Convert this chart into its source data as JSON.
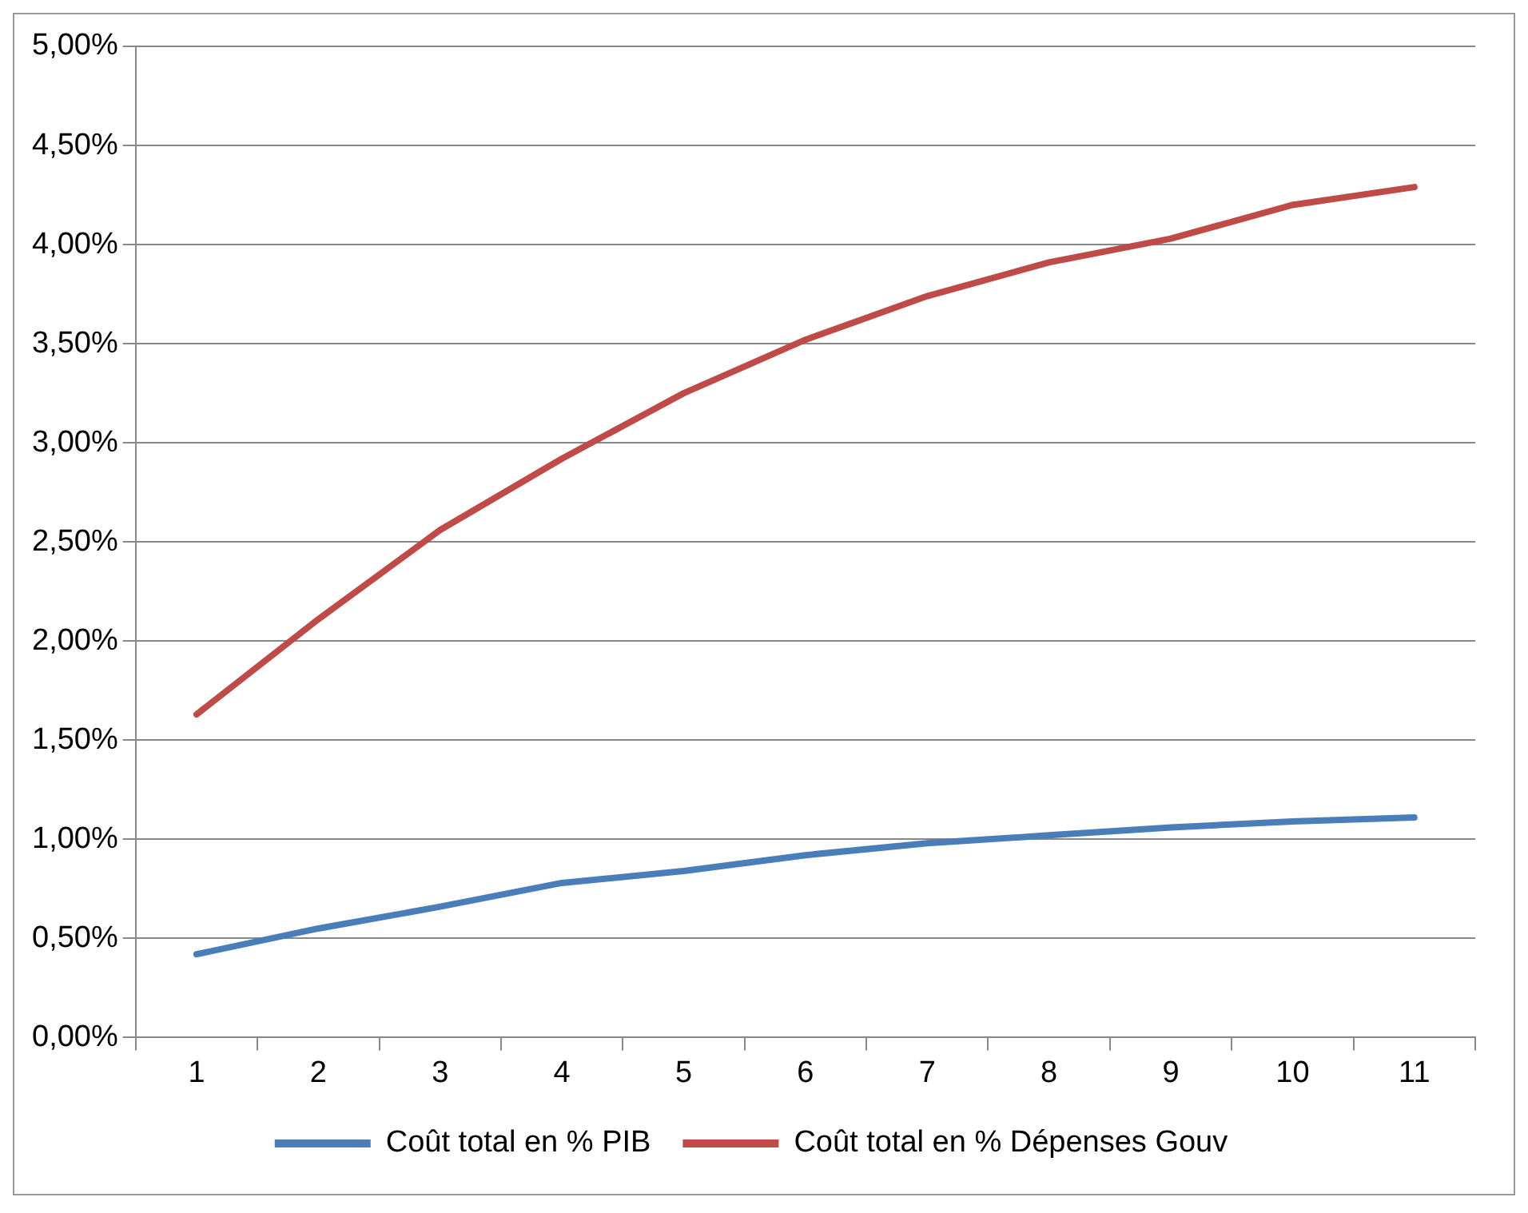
{
  "chart_data": {
    "type": "line",
    "categories": [
      "1",
      "2",
      "3",
      "4",
      "5",
      "6",
      "7",
      "8",
      "9",
      "10",
      "11"
    ],
    "series": [
      {
        "name": "Coût total en % PIB",
        "color": "#4a7ebb",
        "values": [
          0.42,
          0.55,
          0.66,
          0.78,
          0.84,
          0.92,
          0.98,
          1.02,
          1.06,
          1.09,
          1.11
        ]
      },
      {
        "name": "Coût total en % Dépenses Gouv",
        "color": "#be4b48",
        "values": [
          1.63,
          2.11,
          2.56,
          2.92,
          3.25,
          3.52,
          3.74,
          3.91,
          4.03,
          4.2,
          4.29
        ]
      }
    ],
    "ylim": [
      0,
      5
    ],
    "yticks": [
      {
        "value": 0,
        "label": "0,00%"
      },
      {
        "value": 0.5,
        "label": "0,50%"
      },
      {
        "value": 1,
        "label": "1,00%"
      },
      {
        "value": 1.5,
        "label": "1,50%"
      },
      {
        "value": 2,
        "label": "2,00%"
      },
      {
        "value": 2.5,
        "label": "2,50%"
      },
      {
        "value": 3,
        "label": "3,00%"
      },
      {
        "value": 3.5,
        "label": "3,50%"
      },
      {
        "value": 4,
        "label": "4,00%"
      },
      {
        "value": 4.5,
        "label": "4,50%"
      },
      {
        "value": 5,
        "label": "5,00%"
      }
    ],
    "grid": "y",
    "legend": "bottom",
    "marker": "none",
    "line_style": "solid"
  }
}
